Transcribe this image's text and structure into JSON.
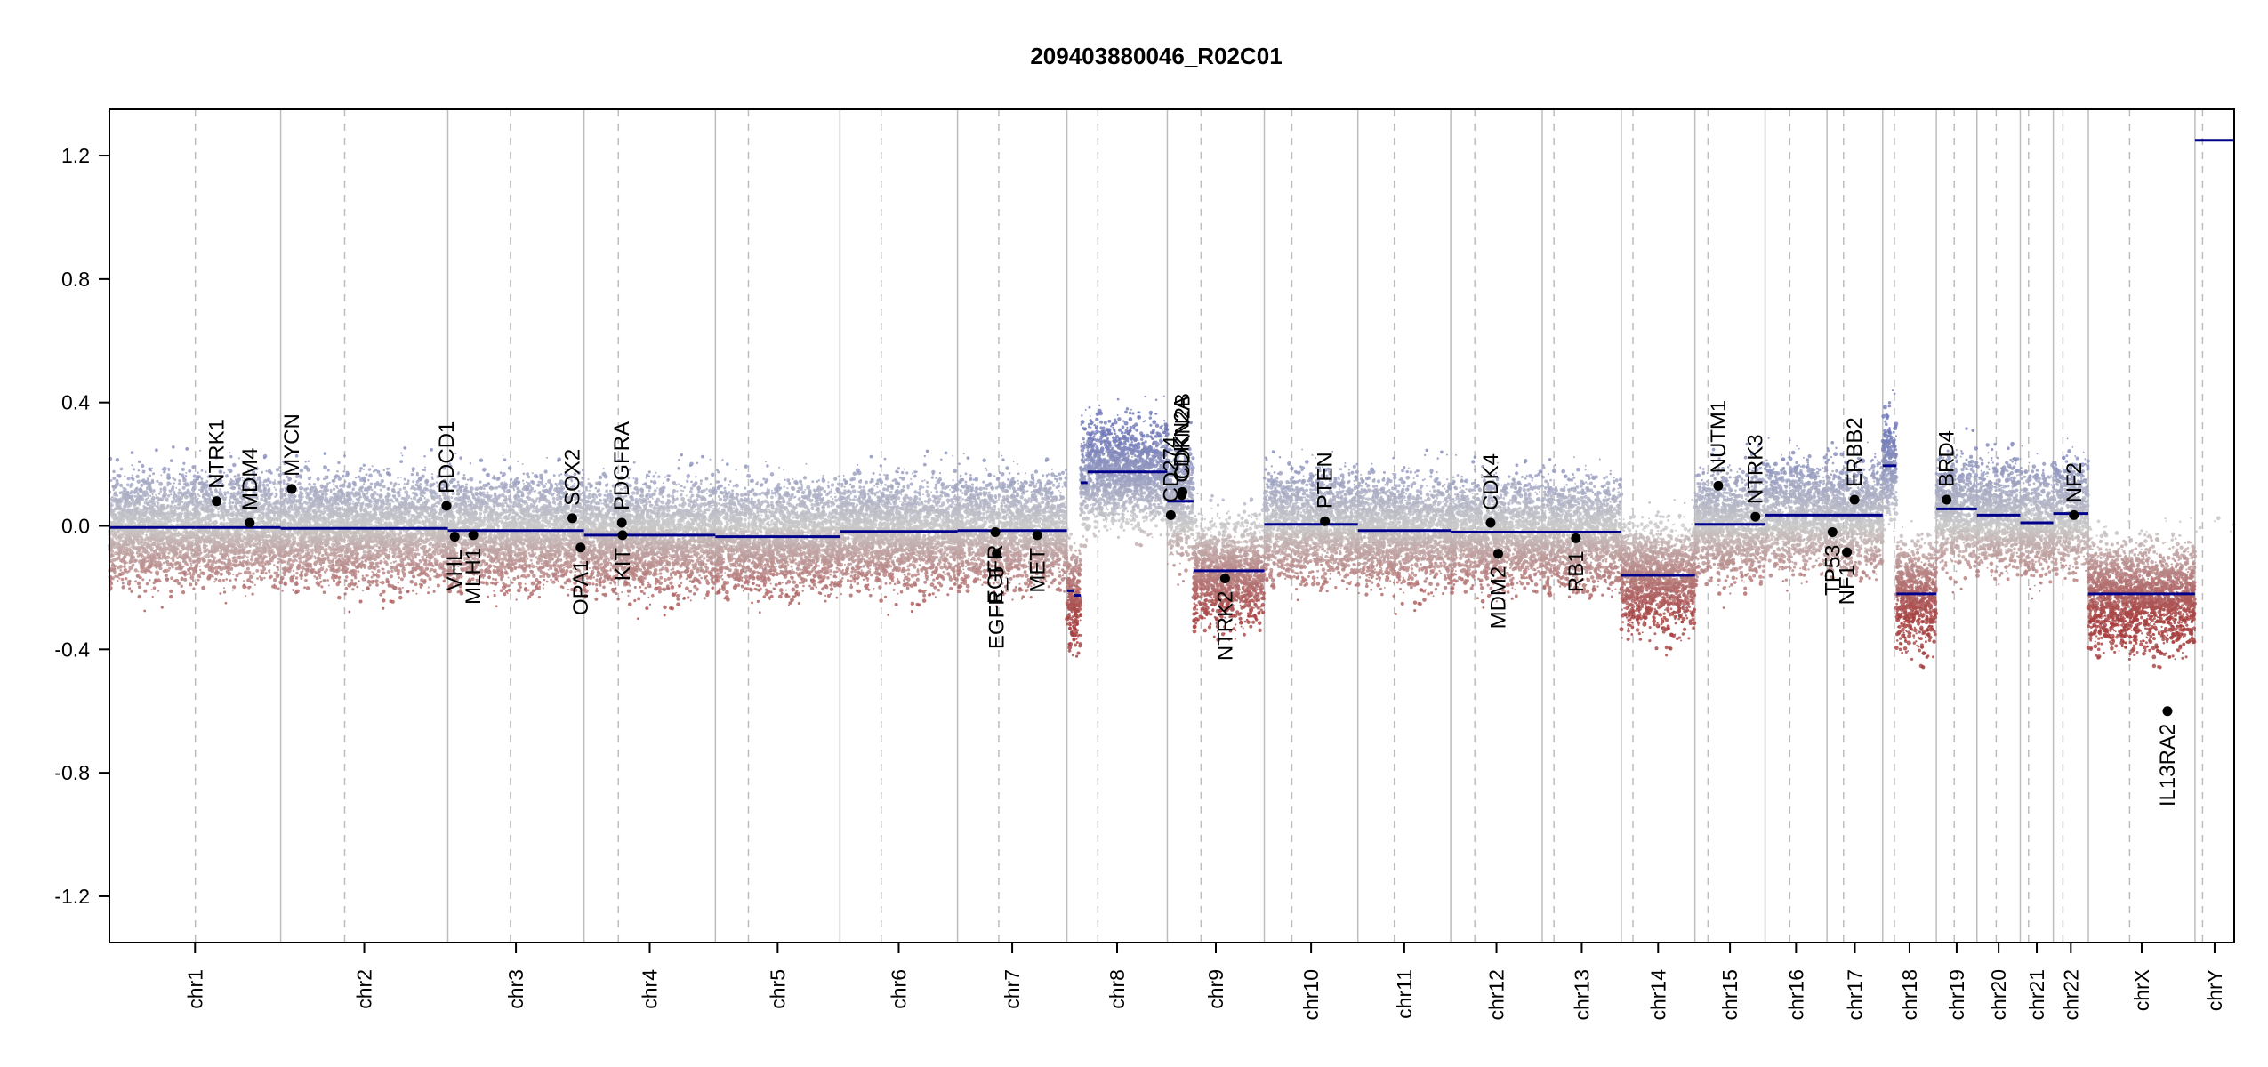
{
  "chart_data": {
    "type": "scatter",
    "title": "209403880046_R02C01",
    "xlabel": "",
    "ylabel": "",
    "ylim": [
      -1.35,
      1.35
    ],
    "y_ticks": [
      {
        "value": 1.2,
        "label": "1.2"
      },
      {
        "value": 0.8,
        "label": "0.8"
      },
      {
        "value": 0.4,
        "label": "0.4"
      },
      {
        "value": 0.0,
        "label": "0.0"
      },
      {
        "value": -0.4,
        "label": "-0.4"
      },
      {
        "value": -0.8,
        "label": "-0.8"
      },
      {
        "value": -1.2,
        "label": "-1.2"
      }
    ],
    "grid": true,
    "colors": {
      "gain": "#6f78b8",
      "loss": "#a63f3f",
      "neutral": "#c9c9c9",
      "segment": "#00008b",
      "gene": "#000000",
      "grid": "#bdbdbd"
    },
    "chromosomes": [
      {
        "name": "chr1",
        "length": 249,
        "centromere": 125
      },
      {
        "name": "chr2",
        "length": 243,
        "centromere": 93
      },
      {
        "name": "chr3",
        "length": 198,
        "centromere": 91
      },
      {
        "name": "chr4",
        "length": 191,
        "centromere": 50
      },
      {
        "name": "chr5",
        "length": 181,
        "centromere": 48
      },
      {
        "name": "chr6",
        "length": 171,
        "centromere": 60
      },
      {
        "name": "chr7",
        "length": 159,
        "centromere": 60
      },
      {
        "name": "chr8",
        "length": 146,
        "centromere": 45
      },
      {
        "name": "chr9",
        "length": 141,
        "centromere": 49
      },
      {
        "name": "chr10",
        "length": 136,
        "centromere": 40
      },
      {
        "name": "chr11",
        "length": 135,
        "centromere": 53
      },
      {
        "name": "chr12",
        "length": 133,
        "centromere": 35
      },
      {
        "name": "chr13",
        "length": 115,
        "centromere": 17
      },
      {
        "name": "chr14",
        "length": 107,
        "centromere": 17
      },
      {
        "name": "chr15",
        "length": 102,
        "centromere": 19
      },
      {
        "name": "chr16",
        "length": 90,
        "centromere": 36
      },
      {
        "name": "chr17",
        "length": 81,
        "centromere": 24
      },
      {
        "name": "chr18",
        "length": 78,
        "centromere": 17
      },
      {
        "name": "chr19",
        "length": 59,
        "centromere": 26
      },
      {
        "name": "chr20",
        "length": 63,
        "centromere": 28
      },
      {
        "name": "chr21",
        "length": 48,
        "centromere": 12
      },
      {
        "name": "chr22",
        "length": 51,
        "centromere": 14
      },
      {
        "name": "chrX",
        "length": 155,
        "centromere": 60
      },
      {
        "name": "chrY",
        "length": 57,
        "centromere": 11
      }
    ],
    "segments": [
      {
        "chrom": "chr1",
        "start": 0,
        "end": 125,
        "value": -0.005
      },
      {
        "chrom": "chr1",
        "start": 125,
        "end": 249,
        "value": -0.005
      },
      {
        "chrom": "chr2",
        "start": 0,
        "end": 243,
        "value": -0.008
      },
      {
        "chrom": "chr3",
        "start": 0,
        "end": 198,
        "value": -0.015
      },
      {
        "chrom": "chr4",
        "start": 0,
        "end": 191,
        "value": -0.03
      },
      {
        "chrom": "chr5",
        "start": 0,
        "end": 181,
        "value": -0.035
      },
      {
        "chrom": "chr6",
        "start": 0,
        "end": 171,
        "value": -0.018
      },
      {
        "chrom": "chr7",
        "start": 0,
        "end": 159,
        "value": -0.015
      },
      {
        "chrom": "chr8",
        "start": 0,
        "end": 10,
        "value": -0.21
      },
      {
        "chrom": "chr8",
        "start": 10,
        "end": 20,
        "value": -0.225
      },
      {
        "chrom": "chr8",
        "start": 20,
        "end": 30,
        "value": 0.14
      },
      {
        "chrom": "chr8",
        "start": 30,
        "end": 146,
        "value": 0.175
      },
      {
        "chrom": "chr9",
        "start": 0,
        "end": 38,
        "value": 0.08
      },
      {
        "chrom": "chr9",
        "start": 38,
        "end": 141,
        "value": -0.145
      },
      {
        "chrom": "chr10",
        "start": 0,
        "end": 136,
        "value": 0.005
      },
      {
        "chrom": "chr11",
        "start": 0,
        "end": 135,
        "value": -0.015
      },
      {
        "chrom": "chr12",
        "start": 0,
        "end": 133,
        "value": -0.02
      },
      {
        "chrom": "chr13",
        "start": 0,
        "end": 115,
        "value": -0.02
      },
      {
        "chrom": "chr14",
        "start": 0,
        "end": 107,
        "value": -0.16
      },
      {
        "chrom": "chr15",
        "start": 0,
        "end": 102,
        "value": 0.005
      },
      {
        "chrom": "chr16",
        "start": 0,
        "end": 90,
        "value": 0.035
      },
      {
        "chrom": "chr17",
        "start": 0,
        "end": 81,
        "value": 0.035
      },
      {
        "chrom": "chr18",
        "start": 0,
        "end": 20,
        "value": 0.195
      },
      {
        "chrom": "chr18",
        "start": 20,
        "end": 78,
        "value": -0.22
      },
      {
        "chrom": "chr19",
        "start": 0,
        "end": 59,
        "value": 0.055
      },
      {
        "chrom": "chr20",
        "start": 0,
        "end": 63,
        "value": 0.035
      },
      {
        "chrom": "chr21",
        "start": 0,
        "end": 48,
        "value": 0.01
      },
      {
        "chrom": "chr22",
        "start": 0,
        "end": 51,
        "value": 0.04
      },
      {
        "chrom": "chrX",
        "start": 0,
        "end": 155,
        "value": -0.22
      },
      {
        "chrom": "chrY",
        "start": 0,
        "end": 57,
        "value": 1.25
      }
    ],
    "genes": [
      {
        "name": "NTRK1",
        "chrom": "chr1",
        "pos": 156,
        "value": 0.08,
        "side": "above"
      },
      {
        "name": "MDM4",
        "chrom": "chr1",
        "pos": 204,
        "value": 0.01,
        "side": "above"
      },
      {
        "name": "MYCN",
        "chrom": "chr2",
        "pos": 16,
        "value": 0.12,
        "side": "above"
      },
      {
        "name": "PDCD1",
        "chrom": "chr2",
        "pos": 241,
        "value": 0.065,
        "side": "above"
      },
      {
        "name": "VHL",
        "chrom": "chr3",
        "pos": 10,
        "value": -0.035,
        "side": "below"
      },
      {
        "name": "MLH1",
        "chrom": "chr3",
        "pos": 37,
        "value": -0.03,
        "side": "below"
      },
      {
        "name": "SOX2",
        "chrom": "chr3",
        "pos": 181,
        "value": 0.025,
        "side": "above"
      },
      {
        "name": "OPA1",
        "chrom": "chr3",
        "pos": 193,
        "value": -0.07,
        "side": "below"
      },
      {
        "name": "PDGFRA",
        "chrom": "chr4",
        "pos": 55,
        "value": 0.01,
        "side": "above"
      },
      {
        "name": "KIT",
        "chrom": "chr4",
        "pos": 56,
        "value": -0.03,
        "side": "below"
      },
      {
        "name": "EGFR",
        "chrom": "chr7",
        "pos": 55,
        "value": -0.02,
        "side": "below"
      },
      {
        "name": "EGFR_5",
        "chrom": "chr7",
        "pos": 57,
        "value": -0.09,
        "side": "below"
      },
      {
        "name": "MET",
        "chrom": "chr7",
        "pos": 116,
        "value": -0.03,
        "side": "below"
      },
      {
        "name": "CDKN2A",
        "chrom": "chr9",
        "pos": 21,
        "value": 0.1,
        "side": "above"
      },
      {
        "name": "CDKN2B",
        "chrom": "chr9",
        "pos": 22,
        "value": 0.11,
        "side": "above"
      },
      {
        "name": "CD274",
        "chrom": "chr9",
        "pos": 5,
        "value": 0.035,
        "side": "above"
      },
      {
        "name": "NTRK2",
        "chrom": "chr9",
        "pos": 84,
        "value": -0.17,
        "side": "below"
      },
      {
        "name": "PTEN",
        "chrom": "chr10",
        "pos": 88,
        "value": 0.015,
        "side": "above"
      },
      {
        "name": "CDK4",
        "chrom": "chr12",
        "pos": 58,
        "value": 0.01,
        "side": "above"
      },
      {
        "name": "MDM2",
        "chrom": "chr12",
        "pos": 69,
        "value": -0.09,
        "side": "below"
      },
      {
        "name": "RB1",
        "chrom": "chr13",
        "pos": 49,
        "value": -0.04,
        "side": "below"
      },
      {
        "name": "NUTM1",
        "chrom": "chr15",
        "pos": 34,
        "value": 0.13,
        "side": "above"
      },
      {
        "name": "NTRK3",
        "chrom": "chr15",
        "pos": 88,
        "value": 0.03,
        "side": "above"
      },
      {
        "name": "TP53",
        "chrom": "chr17",
        "pos": 8,
        "value": -0.02,
        "side": "below"
      },
      {
        "name": "NF1",
        "chrom": "chr17",
        "pos": 29,
        "value": -0.085,
        "side": "below"
      },
      {
        "name": "ERBB2",
        "chrom": "chr17",
        "pos": 40,
        "value": 0.085,
        "side": "above"
      },
      {
        "name": "BRD4",
        "chrom": "chr19",
        "pos": 15,
        "value": 0.085,
        "side": "above"
      },
      {
        "name": "NF2",
        "chrom": "chr22",
        "pos": 30,
        "value": 0.035,
        "side": "above"
      },
      {
        "name": "IL13RA2",
        "chrom": "chrX",
        "pos": 115,
        "value": -0.6,
        "side": "below"
      }
    ]
  }
}
